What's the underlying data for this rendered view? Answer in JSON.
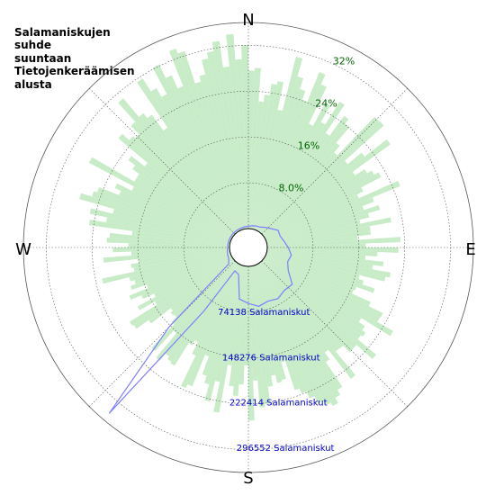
{
  "chart_data": {
    "type": "polar-histogram",
    "title_lines": [
      "Salamaniskujen",
      "suhde",
      "suuntaan",
      "Tietojenkeräämisen",
      "alusta"
    ],
    "compass_labels": {
      "north": "N",
      "east": "E",
      "south": "S",
      "west": "W"
    },
    "percent_axis": {
      "ticks": [
        8.0,
        16,
        24,
        32
      ],
      "tick_labels": [
        "8.0%",
        "16%",
        "24%",
        "32%"
      ],
      "range": [
        0,
        36
      ]
    },
    "count_axis": {
      "ticks": [
        74138,
        148276,
        222414,
        296552
      ],
      "tick_labels": [
        "74138 Salamaniskut",
        "148276 Salamaniskut",
        "222414 Salamaniskut",
        "296552 Salamaniskut"
      ],
      "range": [
        0,
        333621
      ]
    },
    "grid": true,
    "bar_color": "#c8ebc8",
    "line_color": "#7f7fff",
    "bar_series": {
      "sector_width_deg": 2,
      "anchor_directions_deg": [
        0,
        10,
        20,
        30,
        40,
        50,
        60,
        70,
        80,
        90,
        100,
        110,
        120,
        130,
        140,
        150,
        160,
        170,
        180,
        190,
        200,
        210,
        220,
        230,
        240,
        250,
        260,
        270,
        280,
        290,
        300,
        310,
        320,
        330,
        340,
        350
      ],
      "anchor_percent": [
        30.0,
        28.0,
        29.0,
        27.0,
        26.0,
        25.0,
        23.0,
        22.0,
        21.0,
        21.0,
        21.0,
        22.0,
        23.0,
        24.0,
        25.0,
        25.0,
        24.0,
        24.0,
        24.0,
        23.0,
        22.0,
        21.0,
        20.0,
        19.0,
        20.0,
        21.0,
        22.0,
        23.0,
        24.0,
        25.0,
        26.0,
        27.0,
        28.0,
        29.0,
        30.0,
        30.0
      ]
    },
    "line_series": {
      "direction_deg": [
        0,
        10,
        20,
        30,
        40,
        50,
        60,
        70,
        80,
        90,
        100,
        110,
        120,
        130,
        140,
        150,
        160,
        170,
        180,
        190,
        200,
        210,
        215,
        220,
        225,
        230,
        240,
        250,
        260,
        270,
        280,
        290,
        300,
        310,
        320,
        330,
        340,
        350
      ],
      "strikes": [
        4000,
        5000,
        6500,
        7500,
        12000,
        17000,
        25000,
        24000,
        28000,
        34000,
        40000,
        37000,
        44000,
        62000,
        60000,
        65000,
        62000,
        66000,
        60000,
        54000,
        16000,
        13000,
        95000,
        320000,
        150000,
        11000,
        6000,
        5000,
        4000,
        3000,
        3000,
        3000,
        3000,
        3000,
        3000,
        3000,
        3000,
        3500
      ]
    }
  }
}
